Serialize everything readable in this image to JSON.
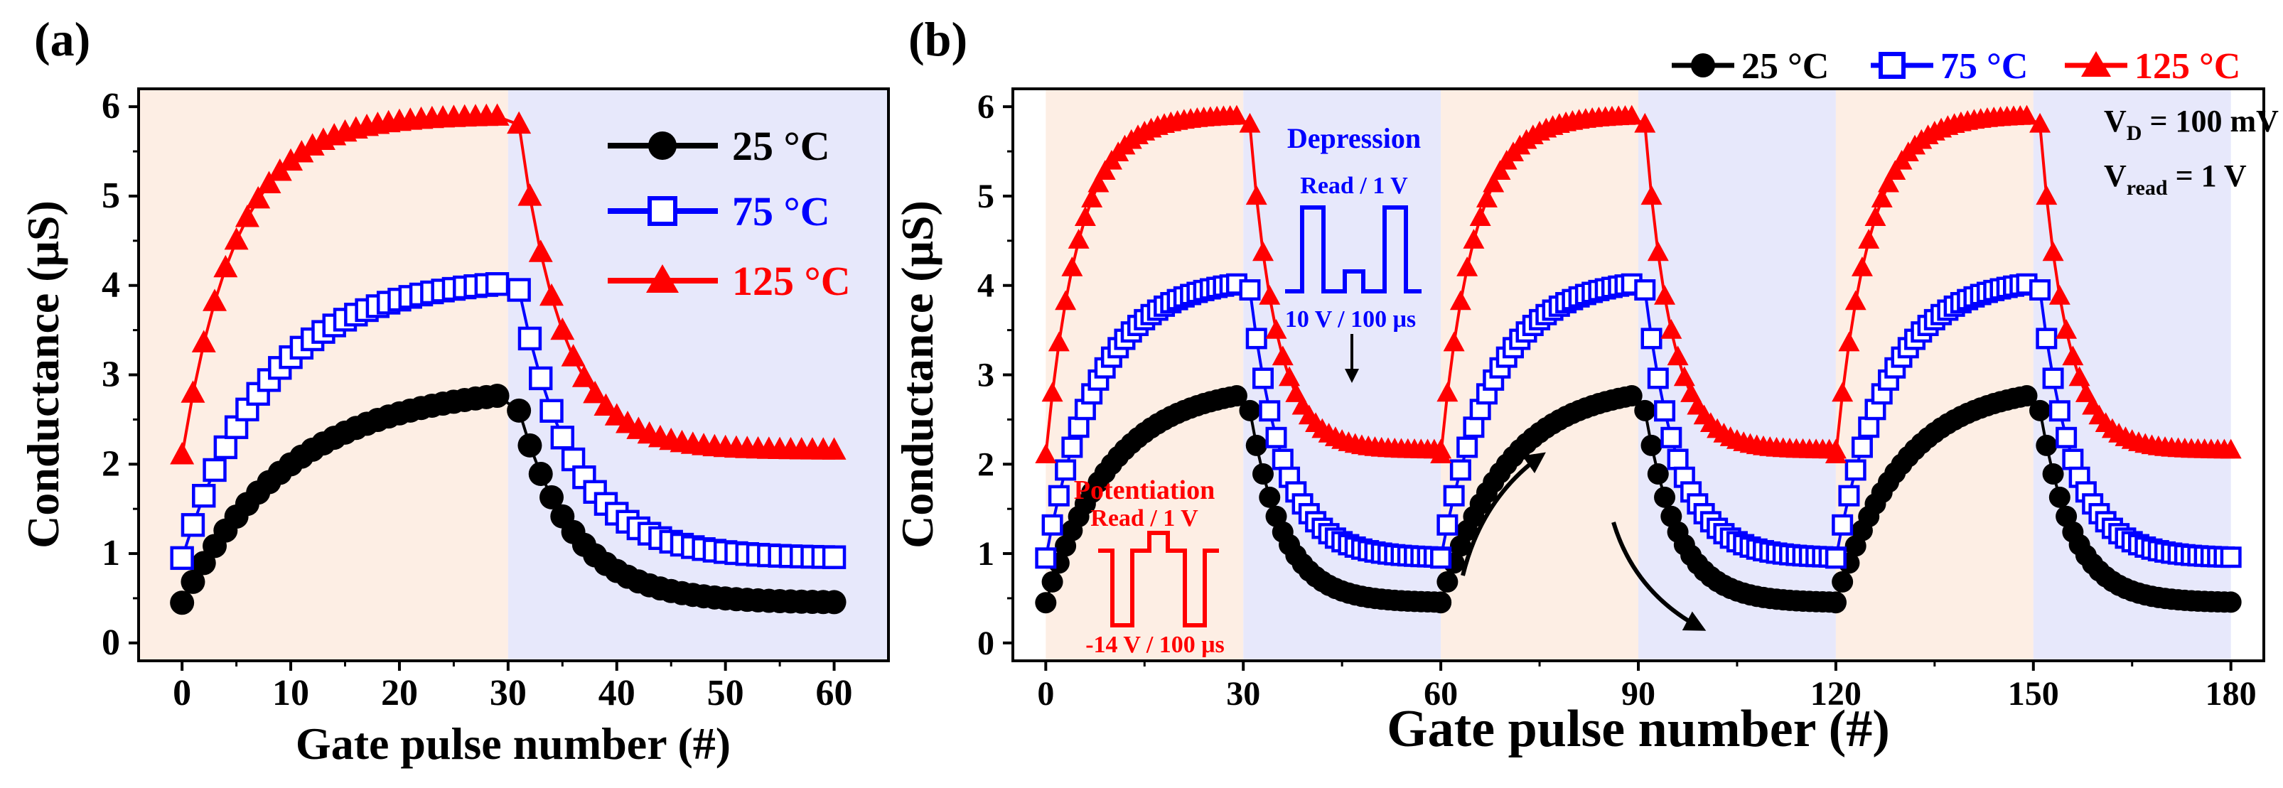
{
  "figure": {
    "colors": {
      "series_25": "#000000",
      "series_75": "#0000ff",
      "series_125": "#ff0000",
      "potentiation_bg": "#fdeee4",
      "depression_bg": "#e7e8fb"
    }
  },
  "chart_data": [
    {
      "id": "a",
      "panel_label": "(a)",
      "type": "scatter",
      "title": "",
      "xlabel": "Gate pulse number (#)",
      "ylabel": "Conductance (μS)",
      "xlim": [
        -4,
        65
      ],
      "ylim": [
        -0.2,
        6.2
      ],
      "xticks": [
        0,
        10,
        20,
        30,
        40,
        50,
        60
      ],
      "yticks": [
        0,
        1,
        2,
        3,
        4,
        5,
        6
      ],
      "regions": [
        {
          "from": -4,
          "to": 30,
          "kind": "potentiation"
        },
        {
          "from": 30,
          "to": 65,
          "kind": "depression"
        }
      ],
      "legend_position": "top-right inside",
      "cycles": 1,
      "series": [
        {
          "name": "25 °C",
          "marker": "circle-filled",
          "potentiation": {
            "start": 0.45,
            "end": 2.9,
            "tau": 10
          },
          "depression": {
            "start": 2.6,
            "end": 0.45,
            "tau": 5
          }
        },
        {
          "name": "75 °C",
          "marker": "square-open",
          "potentiation": {
            "start": 0.95,
            "end": 4.1,
            "tau": 8
          },
          "depression": {
            "start": 3.95,
            "end": 0.95,
            "tau": 5
          }
        },
        {
          "name": "125 °C",
          "marker": "triangle-filled",
          "potentiation": {
            "start": 2.1,
            "end": 5.9,
            "tau": 5
          },
          "depression": {
            "start": 5.8,
            "end": 2.15,
            "tau": 4
          }
        }
      ]
    },
    {
      "id": "b",
      "panel_label": "(b)",
      "type": "scatter",
      "title": "",
      "xlabel": "Gate pulse number (#)",
      "ylabel": "Conductance (μS)",
      "xlim": [
        -5,
        185
      ],
      "ylim": [
        -0.2,
        6.2
      ],
      "xticks": [
        0,
        30,
        60,
        90,
        120,
        150,
        180
      ],
      "yticks": [
        0,
        1,
        2,
        3,
        4,
        5,
        6
      ],
      "regions": [
        {
          "from": 0,
          "to": 30,
          "kind": "potentiation"
        },
        {
          "from": 30,
          "to": 60,
          "kind": "depression"
        },
        {
          "from": 60,
          "to": 90,
          "kind": "potentiation"
        },
        {
          "from": 90,
          "to": 120,
          "kind": "depression"
        },
        {
          "from": 120,
          "to": 150,
          "kind": "potentiation"
        },
        {
          "from": 150,
          "to": 180,
          "kind": "depression"
        }
      ],
      "legend_position": "above plot, right",
      "cycles": 3,
      "series": [
        {
          "name": "25 °C",
          "marker": "circle-filled",
          "potentiation": {
            "start": 0.45,
            "end": 2.9,
            "tau": 10
          },
          "depression": {
            "start": 2.6,
            "end": 0.45,
            "tau": 5
          }
        },
        {
          "name": "75 °C",
          "marker": "square-open",
          "potentiation": {
            "start": 0.95,
            "end": 4.1,
            "tau": 8
          },
          "depression": {
            "start": 3.95,
            "end": 0.95,
            "tau": 5
          }
        },
        {
          "name": "125 °C",
          "marker": "triangle-filled",
          "potentiation": {
            "start": 2.1,
            "end": 5.9,
            "tau": 5
          },
          "depression": {
            "start": 5.8,
            "end": 2.15,
            "tau": 4
          }
        }
      ],
      "annotations": {
        "vd_main": "V",
        "vd_sub": "D",
        "vd_rest": " = 100 mV",
        "vread_main": "V",
        "vread_sub": "read",
        "vread_rest": " = 1 V",
        "depression_title": "Depression",
        "depression_read": "Read / 1 V",
        "depression_pulse": "10 V / 100 μs",
        "potentiation_title": "Potentiation",
        "potentiation_read": "Read / 1 V",
        "potentiation_pulse": "-14 V / 100 μs"
      }
    }
  ]
}
